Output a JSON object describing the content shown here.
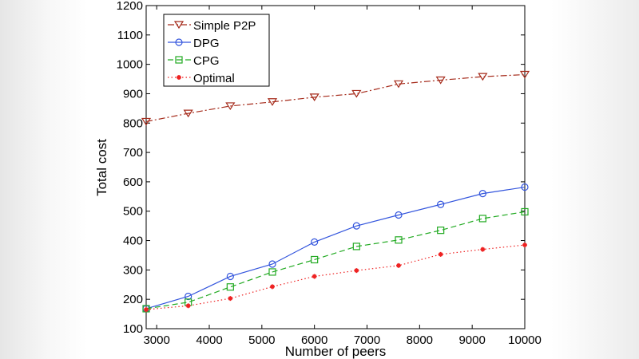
{
  "chart_data": {
    "type": "line",
    "title": "",
    "xlabel": "Number of peers",
    "ylabel": "Total cost",
    "xlim": [
      2800,
      10000
    ],
    "ylim": [
      100,
      1200
    ],
    "xticks": [
      3000,
      4000,
      5000,
      6000,
      7000,
      8000,
      9000,
      10000
    ],
    "yticks": [
      100,
      200,
      300,
      400,
      500,
      600,
      700,
      800,
      900,
      1000,
      1100,
      1200
    ],
    "legend_position": "top-left",
    "x": [
      2800,
      3600,
      4400,
      5200,
      6000,
      6800,
      7600,
      8400,
      9200,
      10000
    ],
    "series": [
      {
        "name": "Simple P2P",
        "color": "#a52a1a",
        "marker": "triangle-down",
        "dash": "8,3,2,3",
        "values": [
          805,
          833,
          858,
          872,
          888,
          900,
          933,
          946,
          958,
          965
        ]
      },
      {
        "name": "DPG",
        "color": "#3355dd",
        "marker": "circle",
        "dash": "",
        "values": [
          168,
          210,
          278,
          320,
          395,
          450,
          487,
          523,
          560,
          582
        ]
      },
      {
        "name": "CPG",
        "color": "#22aa22",
        "marker": "square",
        "dash": "7,4",
        "values": [
          168,
          190,
          242,
          293,
          335,
          380,
          402,
          435,
          475,
          498
        ]
      },
      {
        "name": "Optimal",
        "color": "#ee2222",
        "marker": "star",
        "dash": "1.5,3",
        "values": [
          165,
          178,
          203,
          243,
          278,
          298,
          315,
          353,
          370,
          385
        ]
      }
    ]
  }
}
